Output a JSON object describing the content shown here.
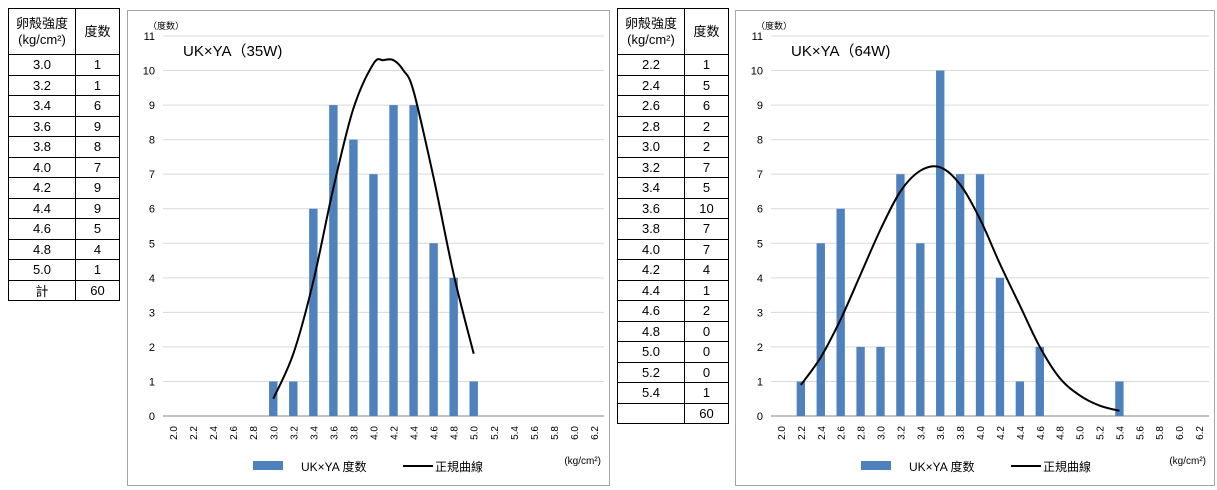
{
  "table_header": {
    "col1": "卵殻強度\n(kg/cm²)",
    "col2": "度数"
  },
  "table1": {
    "rows": [
      [
        "3.0",
        "1"
      ],
      [
        "3.2",
        "1"
      ],
      [
        "3.4",
        "6"
      ],
      [
        "3.6",
        "9"
      ],
      [
        "3.8",
        "8"
      ],
      [
        "4.0",
        "7"
      ],
      [
        "4.2",
        "9"
      ],
      [
        "4.4",
        "9"
      ],
      [
        "4.6",
        "5"
      ],
      [
        "4.8",
        "4"
      ],
      [
        "5.0",
        "1"
      ]
    ],
    "total_label": "計",
    "total_value": "60"
  },
  "table2": {
    "rows": [
      [
        "2.2",
        "1"
      ],
      [
        "2.4",
        "5"
      ],
      [
        "2.6",
        "6"
      ],
      [
        "2.8",
        "2"
      ],
      [
        "3.0",
        "2"
      ],
      [
        "3.2",
        "7"
      ],
      [
        "3.4",
        "5"
      ],
      [
        "3.6",
        "10"
      ],
      [
        "3.8",
        "7"
      ],
      [
        "4.0",
        "7"
      ],
      [
        "4.2",
        "4"
      ],
      [
        "4.4",
        "1"
      ],
      [
        "4.6",
        "2"
      ],
      [
        "4.8",
        "0"
      ],
      [
        "5.0",
        "0"
      ],
      [
        "5.2",
        "0"
      ],
      [
        "5.4",
        "1"
      ]
    ],
    "total_label": "",
    "total_value": "60"
  },
  "colors": {
    "bar": "#4f81bd",
    "curve": "#000000",
    "grid": "#d9d9d9",
    "axis": "#868686"
  },
  "chart_data": [
    {
      "type": "bar",
      "title": "UK×YA（35W)",
      "ylabel": "（度数）",
      "xlabel": "(kg/cm²)",
      "ylim": [
        0,
        11
      ],
      "grid": true,
      "legend": "bottom",
      "categories": [
        "2.0",
        "2.2",
        "2.4",
        "2.6",
        "2.8",
        "3.0",
        "3.2",
        "3.4",
        "3.6",
        "3.8",
        "4.0",
        "4.2",
        "4.4",
        "4.6",
        "4.8",
        "5.0",
        "5.2",
        "5.4",
        "5.6",
        "5.8",
        "6.0",
        "6.2"
      ],
      "series": [
        {
          "name": "UK×YA 度数",
          "type": "bar",
          "values": [
            0,
            0,
            0,
            0,
            0,
            1,
            1,
            6,
            9,
            8,
            7,
            9,
            9,
            5,
            4,
            1,
            0,
            0,
            0,
            0,
            0,
            0
          ]
        },
        {
          "name": "正規曲線",
          "type": "line",
          "x": [
            3.0,
            3.2,
            3.4,
            3.6,
            3.8,
            4.0,
            4.1,
            4.2,
            4.3,
            4.4,
            4.6,
            4.8,
            5.0
          ],
          "y": [
            0.5,
            1.8,
            3.9,
            6.6,
            8.9,
            10.2,
            10.3,
            10.3,
            10.0,
            9.4,
            6.9,
            4.1,
            1.8
          ]
        }
      ]
    },
    {
      "type": "bar",
      "title": "UK×YA（64W)",
      "ylabel": "（度数）",
      "xlabel": "(kg/cm²)",
      "ylim": [
        0,
        11
      ],
      "grid": true,
      "legend": "bottom",
      "categories": [
        "2.0",
        "2.2",
        "2.4",
        "2.6",
        "2.8",
        "3.0",
        "3.2",
        "3.4",
        "3.6",
        "3.8",
        "4.0",
        "4.2",
        "4.4",
        "4.6",
        "4.8",
        "5.0",
        "5.2",
        "5.4",
        "5.6",
        "5.8",
        "6.0",
        "6.2"
      ],
      "series": [
        {
          "name": "UK×YA 度数",
          "type": "bar",
          "values": [
            0,
            1,
            5,
            6,
            2,
            2,
            7,
            5,
            10,
            7,
            7,
            4,
            1,
            2,
            0,
            0,
            0,
            1,
            0,
            0,
            0,
            0
          ]
        },
        {
          "name": "正規曲線",
          "type": "line",
          "x": [
            2.2,
            2.4,
            2.6,
            2.8,
            3.0,
            3.2,
            3.4,
            3.6,
            3.8,
            4.0,
            4.2,
            4.4,
            4.6,
            4.8,
            5.0,
            5.2,
            5.4
          ],
          "y": [
            0.9,
            1.7,
            2.8,
            4.1,
            5.4,
            6.5,
            7.1,
            7.2,
            6.7,
            5.7,
            4.4,
            3.2,
            2.0,
            1.1,
            0.6,
            0.3,
            0.15
          ]
        }
      ]
    }
  ]
}
